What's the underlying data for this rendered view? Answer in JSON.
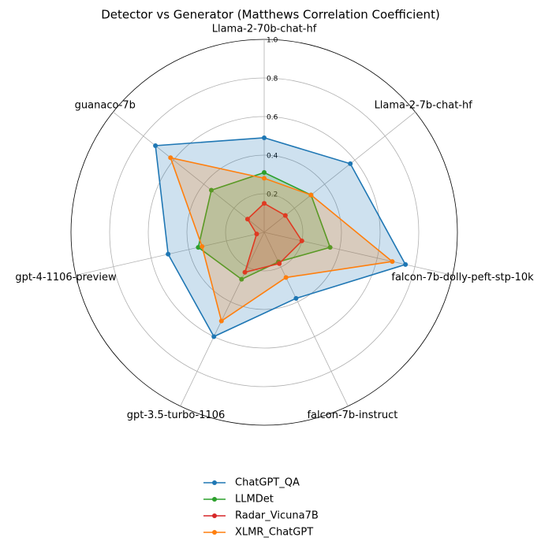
{
  "chart_data": {
    "type": "radar",
    "title": "Detector vs Generator (Matthews Correlation Coefficient)",
    "categories": [
      "Llama-2-70b-chat-hf",
      "Llama-2-7b-chat-hf",
      "falcon-7b-dolly-peft-stp-10k",
      "falcon-7b-instruct",
      "gpt-3.5-turbo-1106",
      "gpt-4-1106-preview",
      "guanaco-7b"
    ],
    "ylim": [
      0,
      1
    ],
    "yticks": [
      0.2,
      0.4,
      0.6,
      0.8,
      {
        "value": 1,
        "label": "1.0"
      }
    ],
    "grid": true,
    "legend": "bottom",
    "series": [
      {
        "name": "ChatGPT_QA",
        "color": "#1f77b4",
        "values": [
          0.49,
          0.57,
          0.75,
          0.38,
          0.6,
          0.51,
          0.72
        ]
      },
      {
        "name": "LLMDet",
        "color": "#2ca02c",
        "values": [
          0.31,
          0.31,
          0.35,
          0.17,
          0.27,
          0.35,
          0.35
        ]
      },
      {
        "name": "Radar_Vicuna7B",
        "color": "#d62728",
        "values": [
          0.15,
          0.14,
          0.2,
          0.18,
          0.23,
          0.04,
          0.11
        ]
      },
      {
        "name": "XLMR_ChatGPT",
        "color": "#ff7f0e",
        "values": [
          0.28,
          0.31,
          0.68,
          0.26,
          0.51,
          0.33,
          0.62
        ]
      }
    ]
  }
}
